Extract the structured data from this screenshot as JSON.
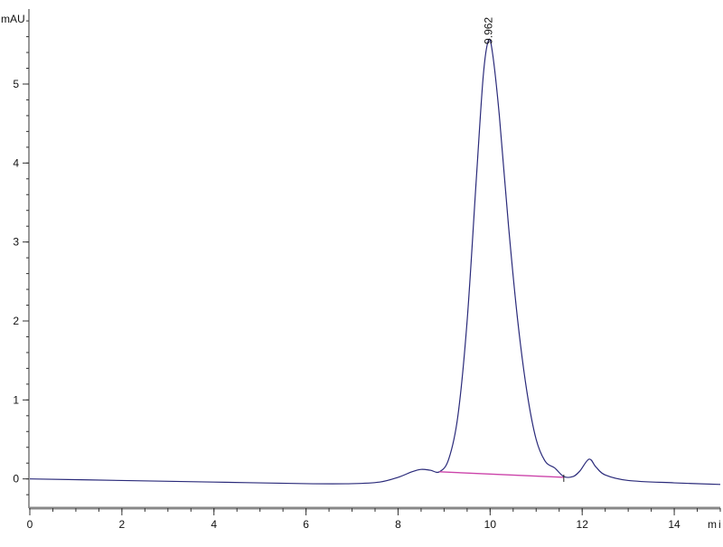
{
  "chart_data": {
    "type": "line",
    "title": "",
    "xlabel": "min",
    "ylabel": "mAU",
    "xlim": [
      0,
      15
    ],
    "ylim": [
      -0.37,
      5.95
    ],
    "xticks": [
      0,
      2,
      4,
      6,
      8,
      10,
      12,
      14
    ],
    "yticks": [
      0,
      1,
      2,
      3,
      4,
      5
    ],
    "x_minor_step": 0.5,
    "y_minor_step": 0.2,
    "grid": false,
    "trace_color": "#2a2a7a",
    "baseline_color": "#cc44aa",
    "series": [
      {
        "x": [
          0,
          2,
          4,
          6,
          7,
          7.6,
          8,
          8.3,
          8.5,
          8.7,
          8.9,
          9.1,
          9.3,
          9.5,
          9.7,
          9.85,
          9.962,
          10.05,
          10.2,
          10.4,
          10.6,
          10.8,
          11.0,
          11.2,
          11.4,
          11.6,
          11.8,
          11.95,
          12.15,
          12.3,
          12.5,
          13,
          14,
          15
        ],
        "y": [
          0,
          -0.02,
          -0.04,
          -0.06,
          -0.06,
          -0.04,
          0.02,
          0.09,
          0.12,
          0.11,
          0.09,
          0.25,
          0.8,
          2.0,
          3.8,
          5.1,
          5.55,
          5.4,
          4.6,
          3.2,
          2.0,
          1.1,
          0.5,
          0.22,
          0.14,
          0.03,
          0.03,
          0.1,
          0.25,
          0.15,
          0.05,
          -0.02,
          -0.05,
          -0.07
        ]
      }
    ],
    "integration_baseline": {
      "x": [
        8.9,
        11.6
      ],
      "y": [
        0.09,
        0.02
      ]
    },
    "annotations": [
      {
        "x": 9.962,
        "y": 5.55,
        "label": "9.962"
      }
    ]
  }
}
